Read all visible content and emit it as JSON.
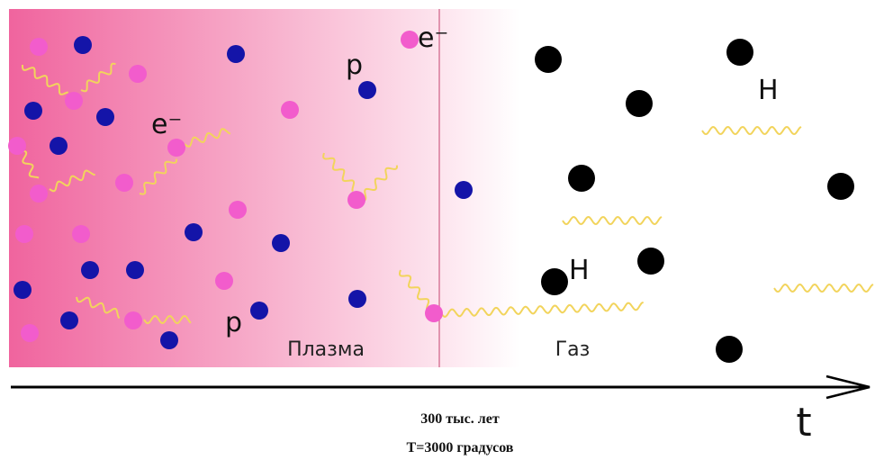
{
  "labels": {
    "electron_1": "e⁻",
    "electron_2": "e⁻",
    "proton_1": "p",
    "proton_2": "p",
    "hydrogen_1": "H",
    "hydrogen_2": "H",
    "plasma": "Плазма",
    "gas": "Газ",
    "axis": "t"
  },
  "caption": {
    "time": "300 тыс. лет",
    "temperature": "T=3000 градусов"
  }
}
